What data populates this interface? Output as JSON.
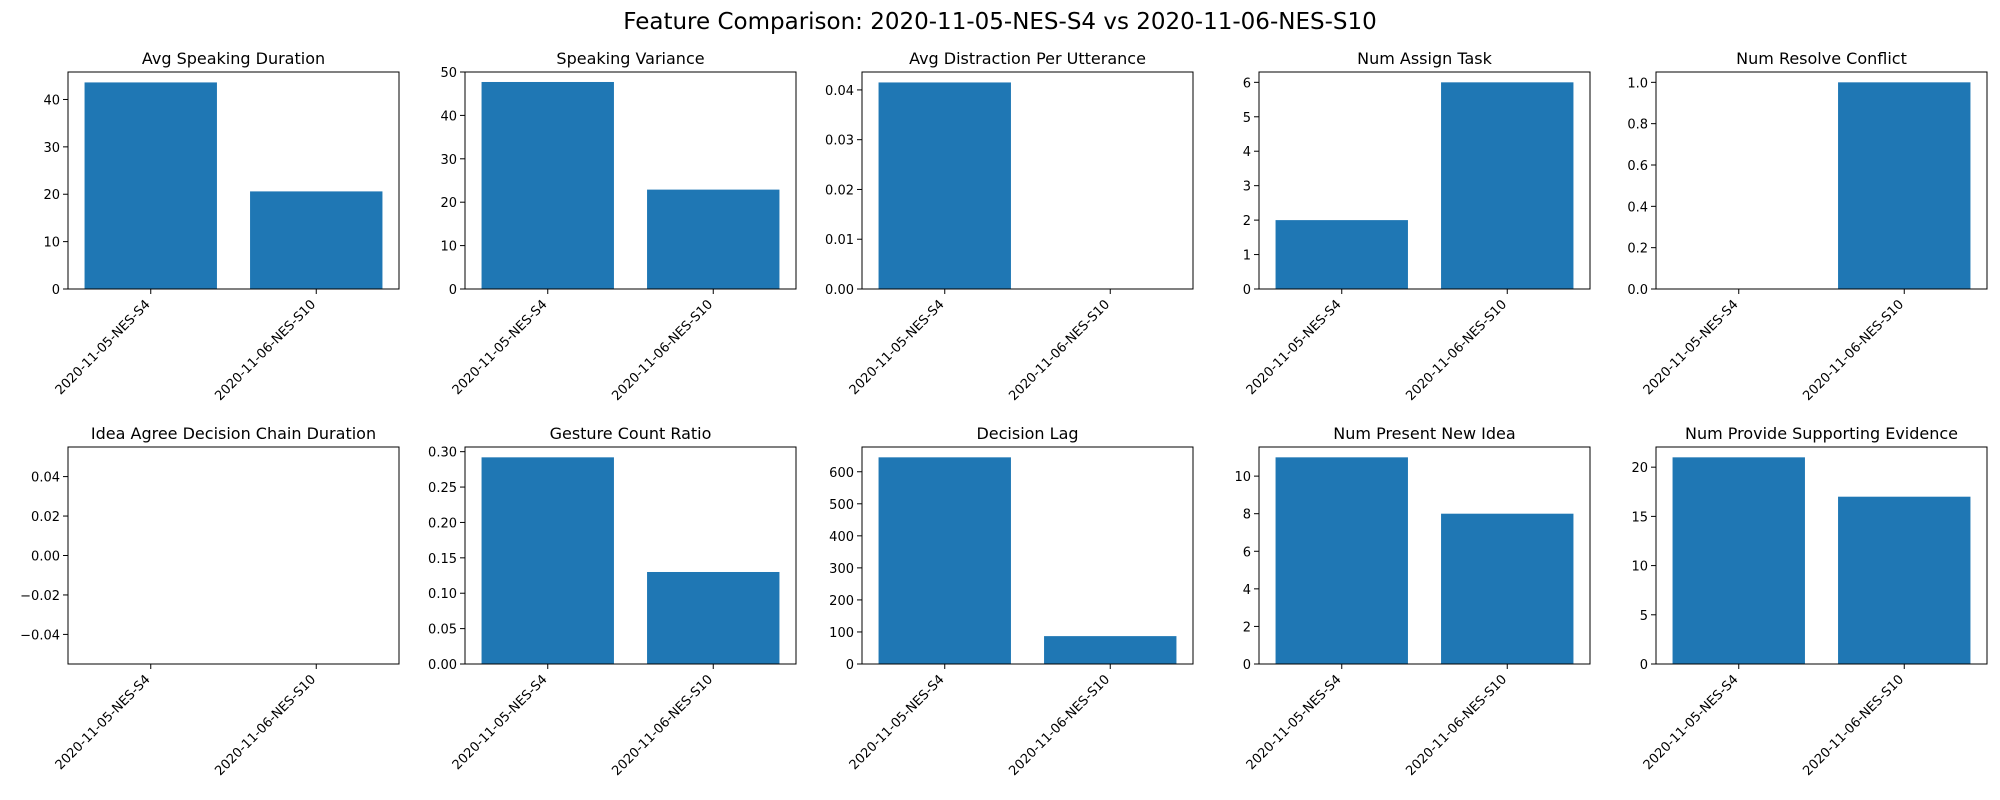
{
  "title": "Feature Comparison: 2020-11-05-NES-S4 vs 2020-11-06-NES-S10",
  "colors": {
    "bar": "#1f77b4"
  },
  "chart_data": [
    {
      "type": "bar",
      "title": "Avg Speaking Duration",
      "categories": [
        "2020-11-05-NES-S4",
        "2020-11-06-NES-S10"
      ],
      "values": [
        43.6,
        20.6
      ],
      "ylim": [
        0,
        45.8
      ],
      "yticks": [
        0,
        10,
        20,
        30,
        40
      ],
      "ytick_labels": [
        "0",
        "10",
        "20",
        "30",
        "40"
      ],
      "xlabel": "",
      "ylabel": ""
    },
    {
      "type": "bar",
      "title": "Speaking Variance",
      "categories": [
        "2020-11-05-NES-S4",
        "2020-11-06-NES-S10"
      ],
      "values": [
        47.7,
        22.9
      ],
      "ylim": [
        0,
        50
      ],
      "yticks": [
        0,
        10,
        20,
        30,
        40,
        50
      ],
      "ytick_labels": [
        "0",
        "10",
        "20",
        "30",
        "40",
        "50"
      ],
      "xlabel": "",
      "ylabel": ""
    },
    {
      "type": "bar",
      "title": "Avg Distraction Per Utterance",
      "categories": [
        "2020-11-05-NES-S4",
        "2020-11-06-NES-S10"
      ],
      "values": [
        0.0415,
        0
      ],
      "ylim": [
        0,
        0.0436
      ],
      "yticks": [
        0,
        0.01,
        0.02,
        0.03,
        0.04
      ],
      "ytick_labels": [
        "0.00",
        "0.01",
        "0.02",
        "0.03",
        "0.04"
      ],
      "xlabel": "",
      "ylabel": ""
    },
    {
      "type": "bar",
      "title": "Num Assign Task",
      "categories": [
        "2020-11-05-NES-S4",
        "2020-11-06-NES-S10"
      ],
      "values": [
        2,
        6
      ],
      "ylim": [
        0,
        6.3
      ],
      "yticks": [
        0,
        1,
        2,
        3,
        4,
        5,
        6
      ],
      "ytick_labels": [
        "0",
        "1",
        "2",
        "3",
        "4",
        "5",
        "6"
      ],
      "xlabel": "",
      "ylabel": ""
    },
    {
      "type": "bar",
      "title": "Num Resolve Conflict",
      "categories": [
        "2020-11-05-NES-S4",
        "2020-11-06-NES-S10"
      ],
      "values": [
        0,
        1
      ],
      "ylim": [
        0,
        1.05
      ],
      "yticks": [
        0,
        0.2,
        0.4,
        0.6,
        0.8,
        1.0
      ],
      "ytick_labels": [
        "0.0",
        "0.2",
        "0.4",
        "0.6",
        "0.8",
        "1.0"
      ],
      "xlabel": "",
      "ylabel": ""
    },
    {
      "type": "bar",
      "title": "Idea Agree Decision Chain Duration",
      "categories": [
        "2020-11-05-NES-S4",
        "2020-11-06-NES-S10"
      ],
      "values": [
        0,
        0
      ],
      "ylim": [
        -0.055,
        0.055
      ],
      "yticks": [
        -0.04,
        -0.02,
        0,
        0.02,
        0.04
      ],
      "ytick_labels": [
        "−0.04",
        "−0.02",
        "0.00",
        "0.02",
        "0.04"
      ],
      "xlabel": "",
      "ylabel": ""
    },
    {
      "type": "bar",
      "title": "Gesture Count Ratio",
      "categories": [
        "2020-11-05-NES-S4",
        "2020-11-06-NES-S10"
      ],
      "values": [
        0.292,
        0.13
      ],
      "ylim": [
        0,
        0.3066
      ],
      "yticks": [
        0,
        0.05,
        0.1,
        0.15,
        0.2,
        0.25,
        0.3
      ],
      "ytick_labels": [
        "0.00",
        "0.05",
        "0.10",
        "0.15",
        "0.20",
        "0.25",
        "0.30"
      ],
      "xlabel": "",
      "ylabel": ""
    },
    {
      "type": "bar",
      "title": "Decision Lag",
      "categories": [
        "2020-11-05-NES-S4",
        "2020-11-06-NES-S10"
      ],
      "values": [
        645,
        87
      ],
      "ylim": [
        0,
        677.25
      ],
      "yticks": [
        0,
        100,
        200,
        300,
        400,
        500,
        600
      ],
      "ytick_labels": [
        "0",
        "100",
        "200",
        "300",
        "400",
        "500",
        "600"
      ],
      "xlabel": "",
      "ylabel": ""
    },
    {
      "type": "bar",
      "title": "Num Present New Idea",
      "categories": [
        "2020-11-05-NES-S4",
        "2020-11-06-NES-S10"
      ],
      "values": [
        11,
        8
      ],
      "ylim": [
        0,
        11.55
      ],
      "yticks": [
        0,
        2,
        4,
        6,
        8,
        10
      ],
      "ytick_labels": [
        "0",
        "2",
        "4",
        "6",
        "8",
        "10"
      ],
      "xlabel": "",
      "ylabel": ""
    },
    {
      "type": "bar",
      "title": "Num Provide Supporting Evidence",
      "categories": [
        "2020-11-05-NES-S4",
        "2020-11-06-NES-S10"
      ],
      "values": [
        21,
        17
      ],
      "ylim": [
        0,
        22.05
      ],
      "yticks": [
        0,
        5,
        10,
        15,
        20
      ],
      "ytick_labels": [
        "0",
        "5",
        "10",
        "15",
        "20"
      ],
      "xlabel": "",
      "ylabel": ""
    }
  ]
}
